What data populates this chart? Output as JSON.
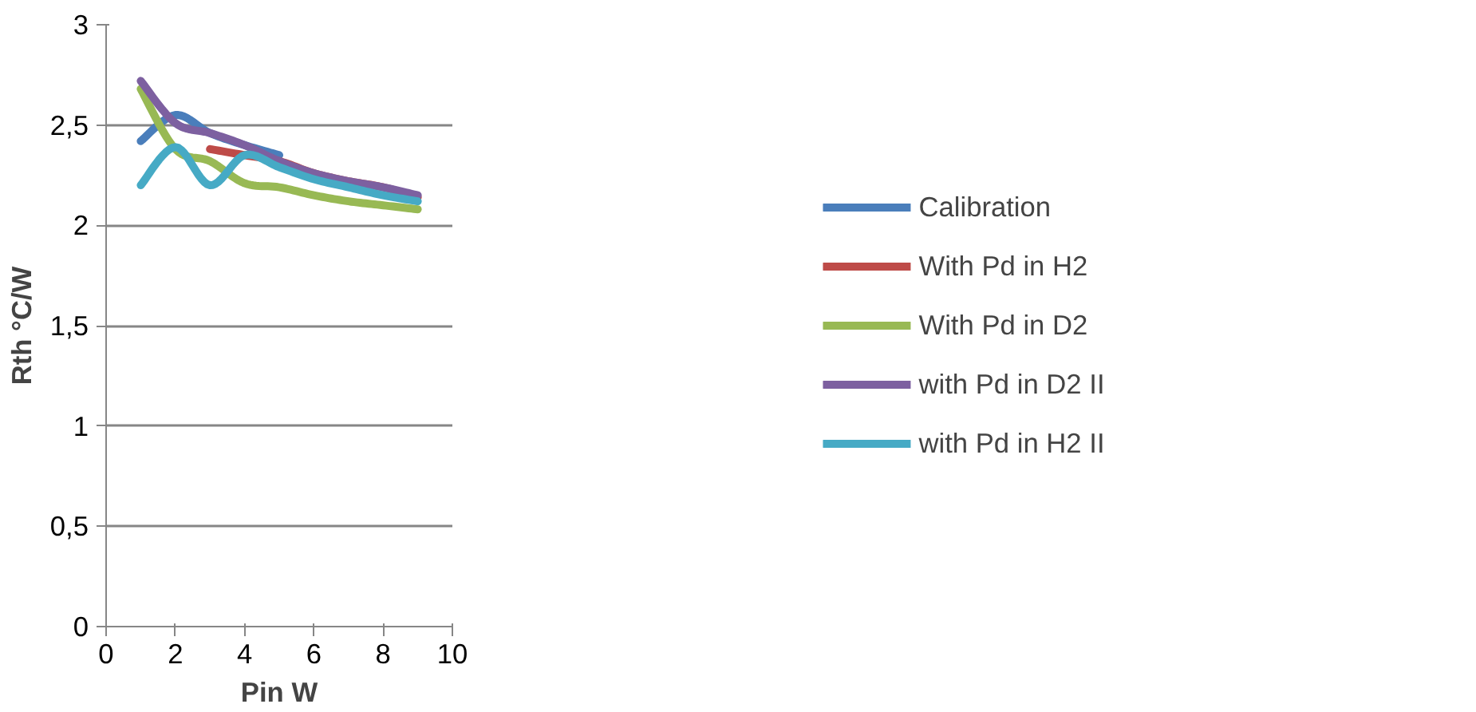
{
  "chart_data": {
    "type": "line",
    "xlabel": "Pin W",
    "ylabel": "Rth °C/W",
    "xlim": [
      0,
      10
    ],
    "ylim": [
      0,
      3
    ],
    "xticks": [
      0,
      2,
      4,
      6,
      8,
      10
    ],
    "yticks": [
      0,
      {
        "value": 0.5,
        "label": "0,5"
      },
      1,
      {
        "value": 1.5,
        "label": "1,5"
      },
      2,
      {
        "value": 2.5,
        "label": "2,5"
      },
      3
    ],
    "grid": "y",
    "legend": "right",
    "marker": "none",
    "line_style": "solid",
    "series": [
      {
        "name": "Calibration",
        "color": "#4a7ebb",
        "x": [
          1,
          2,
          3,
          4,
          5
        ],
        "values": [
          2.42,
          2.55,
          2.46,
          2.4,
          2.35
        ]
      },
      {
        "name": "With Pd in H2",
        "color": "#be4b48",
        "x": [
          3,
          4,
          5,
          6,
          7,
          8,
          9
        ],
        "values": [
          2.38,
          2.35,
          2.32,
          2.26,
          2.22,
          2.19,
          2.14
        ]
      },
      {
        "name": "With Pd in D2",
        "color": "#98b954",
        "x": [
          1,
          2,
          3,
          4,
          5,
          6,
          7,
          8,
          9
        ],
        "values": [
          2.68,
          2.38,
          2.32,
          2.21,
          2.19,
          2.15,
          2.12,
          2.1,
          2.08
        ]
      },
      {
        "name": "with Pd in D2 II",
        "color": "#7d60a0",
        "x": [
          1,
          2,
          3,
          4,
          5,
          6,
          7,
          8,
          9
        ],
        "values": [
          2.72,
          2.51,
          2.46,
          2.4,
          2.32,
          2.26,
          2.22,
          2.19,
          2.15
        ]
      },
      {
        "name": "with Pd in H2 II",
        "color": "#46aac5",
        "x": [
          1,
          2,
          3,
          4,
          5,
          6,
          7,
          8,
          9
        ],
        "values": [
          2.2,
          2.39,
          2.2,
          2.35,
          2.29,
          2.23,
          2.19,
          2.15,
          2.12
        ]
      }
    ]
  }
}
